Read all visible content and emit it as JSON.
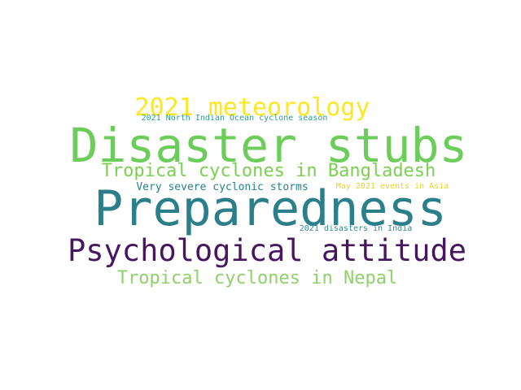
{
  "words": [
    {
      "text": "2021 meteorology",
      "color": "#fde725"
    },
    {
      "text": "2021 North Indian Ocean cyclone season",
      "color": "#2a9d8f"
    },
    {
      "text": "Disaster stubs",
      "color": "#6ccd5a"
    },
    {
      "text": "Tropical cyclones in Bangladesh",
      "color": "#7ad151"
    },
    {
      "text": "Very severe cyclonic storms",
      "color": "#26828e"
    },
    {
      "text": "May 2021 events in Asia",
      "color": "#e8d22a"
    },
    {
      "text": "Preparedness",
      "color": "#2a7f8a"
    },
    {
      "text": "2021 disasters in India",
      "color": "#2f8e8c"
    },
    {
      "text": "Psychological attitude",
      "color": "#46165f"
    },
    {
      "text": "Tropical cyclones in Nepal",
      "color": "#8fd16a"
    }
  ]
}
